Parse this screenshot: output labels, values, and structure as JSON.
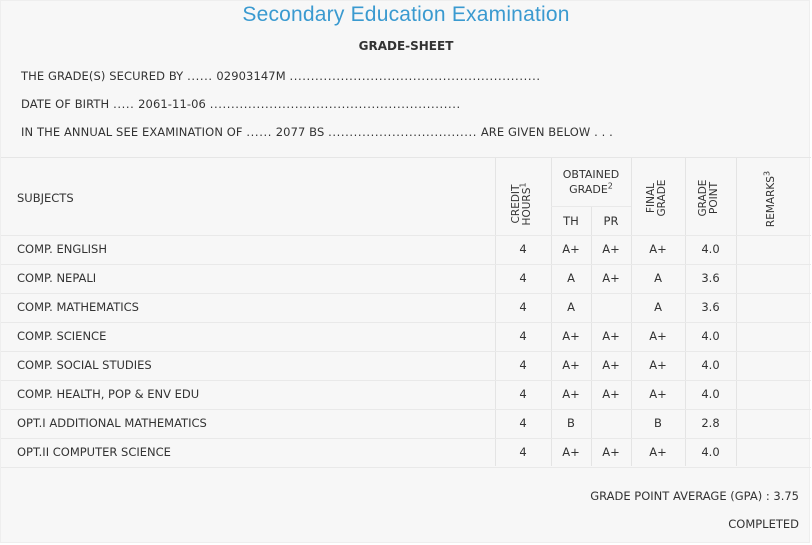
{
  "header": {
    "title": "Secondary Education Examination",
    "subtitle": "GRADE-SHEET"
  },
  "info": {
    "line1_prefix": "THE GRADE(S) SECURED BY",
    "line1_dots_a": "......",
    "line1_value": "02903147M",
    "line1_dots_b": "...........................................................",
    "line2_prefix": "DATE OF BIRTH",
    "line2_dots_a": ".....",
    "line2_value": "2061-11-06",
    "line2_dots_b": "...........................................................",
    "line3_prefix": "IN THE ANNUAL SEE EXAMINATION OF",
    "line3_dots_a": "......",
    "line3_value": "2077 BS",
    "line3_dots_b": "...................................",
    "line3_suffix": "ARE GIVEN BELOW . . ."
  },
  "table": {
    "headers": {
      "subjects": "SUBJECTS",
      "credit_hours_line1": "CREDIT",
      "credit_hours_line2": "HOURS",
      "credit_hours_sup": "1",
      "obtained_grade_line1": "OBTAINED",
      "obtained_grade_line2": "GRADE",
      "obtained_grade_sup": "2",
      "th": "TH",
      "pr": "PR",
      "final_grade_line1": "FINAL",
      "final_grade_line2": "GRADE",
      "grade_point_line1": "GRADE",
      "grade_point_line2": "POINT",
      "remarks": "REMARKS",
      "remarks_sup": "3"
    },
    "rows": [
      {
        "subject": "COMP. ENGLISH",
        "credit": "4",
        "th": "A+",
        "pr": "A+",
        "final": "A+",
        "gp": "4.0",
        "remarks": ""
      },
      {
        "subject": "COMP. NEPALI",
        "credit": "4",
        "th": "A",
        "pr": "A+",
        "final": "A",
        "gp": "3.6",
        "remarks": ""
      },
      {
        "subject": "COMP. MATHEMATICS",
        "credit": "4",
        "th": "A",
        "pr": "",
        "final": "A",
        "gp": "3.6",
        "remarks": ""
      },
      {
        "subject": "COMP. SCIENCE",
        "credit": "4",
        "th": "A+",
        "pr": "A+",
        "final": "A+",
        "gp": "4.0",
        "remarks": ""
      },
      {
        "subject": "COMP. SOCIAL STUDIES",
        "credit": "4",
        "th": "A+",
        "pr": "A+",
        "final": "A+",
        "gp": "4.0",
        "remarks": ""
      },
      {
        "subject": "COMP. HEALTH, POP & ENV EDU",
        "credit": "4",
        "th": "A+",
        "pr": "A+",
        "final": "A+",
        "gp": "4.0",
        "remarks": ""
      },
      {
        "subject": "OPT.I ADDITIONAL MATHEMATICS",
        "credit": "4",
        "th": "B",
        "pr": "",
        "final": "B",
        "gp": "2.8",
        "remarks": ""
      },
      {
        "subject": "OPT.II COMPUTER SCIENCE",
        "credit": "4",
        "th": "A+",
        "pr": "A+",
        "final": "A+",
        "gp": "4.0",
        "remarks": ""
      }
    ]
  },
  "footer": {
    "gpa_label": "GRADE POINT AVERAGE (GPA) :",
    "gpa_value": "3.75",
    "status": "COMPLETED"
  }
}
